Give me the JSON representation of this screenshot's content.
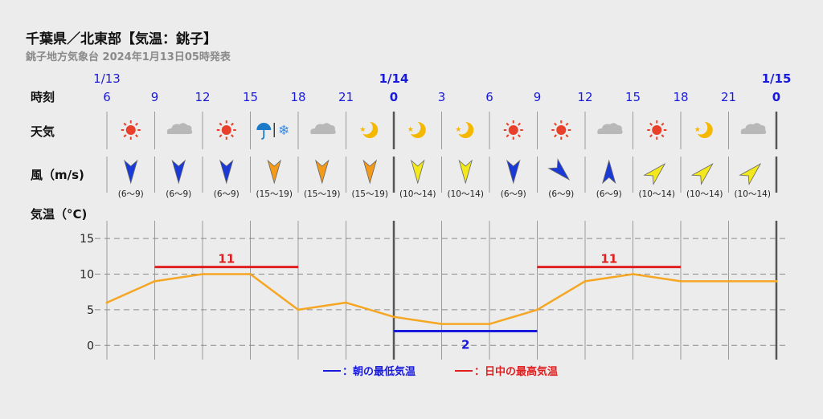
{
  "header": {
    "title": "千葉県／北東部【気温：銚子】",
    "subtitle": "銚子地方気象台 2024年1月13日05時発表"
  },
  "labels": {
    "time": "時刻",
    "weather": "天気",
    "wind": "風（m/s)",
    "temp": "気温（°C)"
  },
  "legend": {
    "min_label": "：朝の最低気温",
    "max_label": "：日中の最高気温"
  },
  "colors": {
    "line": "#f5a623",
    "max": "#e02020",
    "min": "#1a1adc",
    "wind_blue": "#1a3ad8",
    "wind_orange": "#f39a1a",
    "wind_yellow": "#f2e81c",
    "time_label": "#1a1adc"
  },
  "chart_data": {
    "type": "line",
    "x": [
      "6",
      "9",
      "12",
      "15",
      "18",
      "21",
      "0",
      "3",
      "6",
      "9",
      "12",
      "15",
      "18",
      "21",
      "0"
    ],
    "date_labels": [
      {
        "index": 0,
        "label": "1/13"
      },
      {
        "index": 6,
        "label": "1/14"
      },
      {
        "index": 14,
        "label": "1/15"
      }
    ],
    "series": [
      {
        "values": [
          6,
          9,
          10,
          10,
          5,
          6,
          4,
          3,
          3,
          5,
          9,
          10,
          9,
          9,
          9
        ]
      }
    ],
    "yticks": [
      0,
      5,
      10,
      15
    ],
    "ylim": [
      -2,
      17.5
    ],
    "max_temp": [
      {
        "from": 1,
        "to": 4,
        "value": 11
      },
      {
        "from": 9,
        "to": 12,
        "value": 11
      }
    ],
    "min_temp": [
      {
        "from": 6,
        "to": 9,
        "value": 2
      }
    ],
    "weather": [
      {
        "icon": "sun-icon"
      },
      {
        "icon": "cloud-icon"
      },
      {
        "icon": "sun-icon"
      },
      {
        "icon": "umbrella-snow-icon"
      },
      {
        "icon": "cloud-icon"
      },
      {
        "icon": "moon-icon"
      },
      {
        "icon": "moon-icon"
      },
      {
        "icon": "moon-icon"
      },
      {
        "icon": "sun-icon"
      },
      {
        "icon": "sun-icon"
      },
      {
        "icon": "cloud-icon"
      },
      {
        "icon": "sun-icon"
      },
      {
        "icon": "moon-icon"
      },
      {
        "icon": "cloud-icon"
      }
    ],
    "wind": [
      {
        "speed": "(6〜9)",
        "dir": 0,
        "level": "blue"
      },
      {
        "speed": "(6〜9)",
        "dir": 0,
        "level": "blue"
      },
      {
        "speed": "(6〜9)",
        "dir": 0,
        "level": "blue"
      },
      {
        "speed": "(15〜19)",
        "dir": 0,
        "level": "orange"
      },
      {
        "speed": "(15〜19)",
        "dir": 0,
        "level": "orange"
      },
      {
        "speed": "(15〜19)",
        "dir": 0,
        "level": "orange"
      },
      {
        "speed": "(10〜14)",
        "dir": 0,
        "level": "yellow"
      },
      {
        "speed": "(10〜14)",
        "dir": 0,
        "level": "yellow"
      },
      {
        "speed": "(6〜9)",
        "dir": 0,
        "level": "blue"
      },
      {
        "speed": "(6〜9)",
        "dir": -45,
        "level": "blue"
      },
      {
        "speed": "(6〜9)",
        "dir": 180,
        "level": "blue"
      },
      {
        "speed": "(10〜14)",
        "dir": -135,
        "level": "yellow"
      },
      {
        "speed": "(10〜14)",
        "dir": -135,
        "level": "yellow"
      },
      {
        "speed": "(10〜14)",
        "dir": -135,
        "level": "yellow"
      }
    ]
  }
}
